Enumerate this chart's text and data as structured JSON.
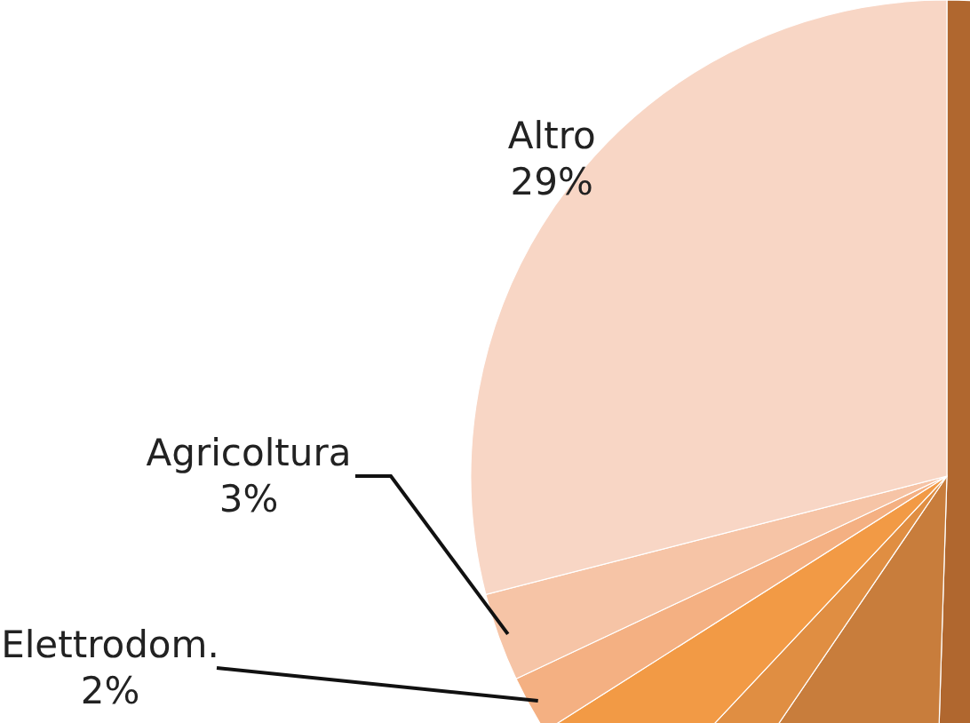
{
  "chart_data": {
    "type": "pie",
    "categories": [
      null,
      null,
      null,
      null,
      "Elettrodom.",
      "Agricoltura",
      "Altro"
    ],
    "values": [
      50.5,
      9,
      2.5,
      4,
      2,
      3,
      29
    ],
    "colors": [
      "#b0672f",
      "#c87d3c",
      "#e08e42",
      "#f29a45",
      "#f4b082",
      "#f6c4a6",
      "#f8d6c5"
    ],
    "value_labels": [
      null,
      null,
      null,
      null,
      "2%",
      "3%",
      "29%"
    ]
  }
}
